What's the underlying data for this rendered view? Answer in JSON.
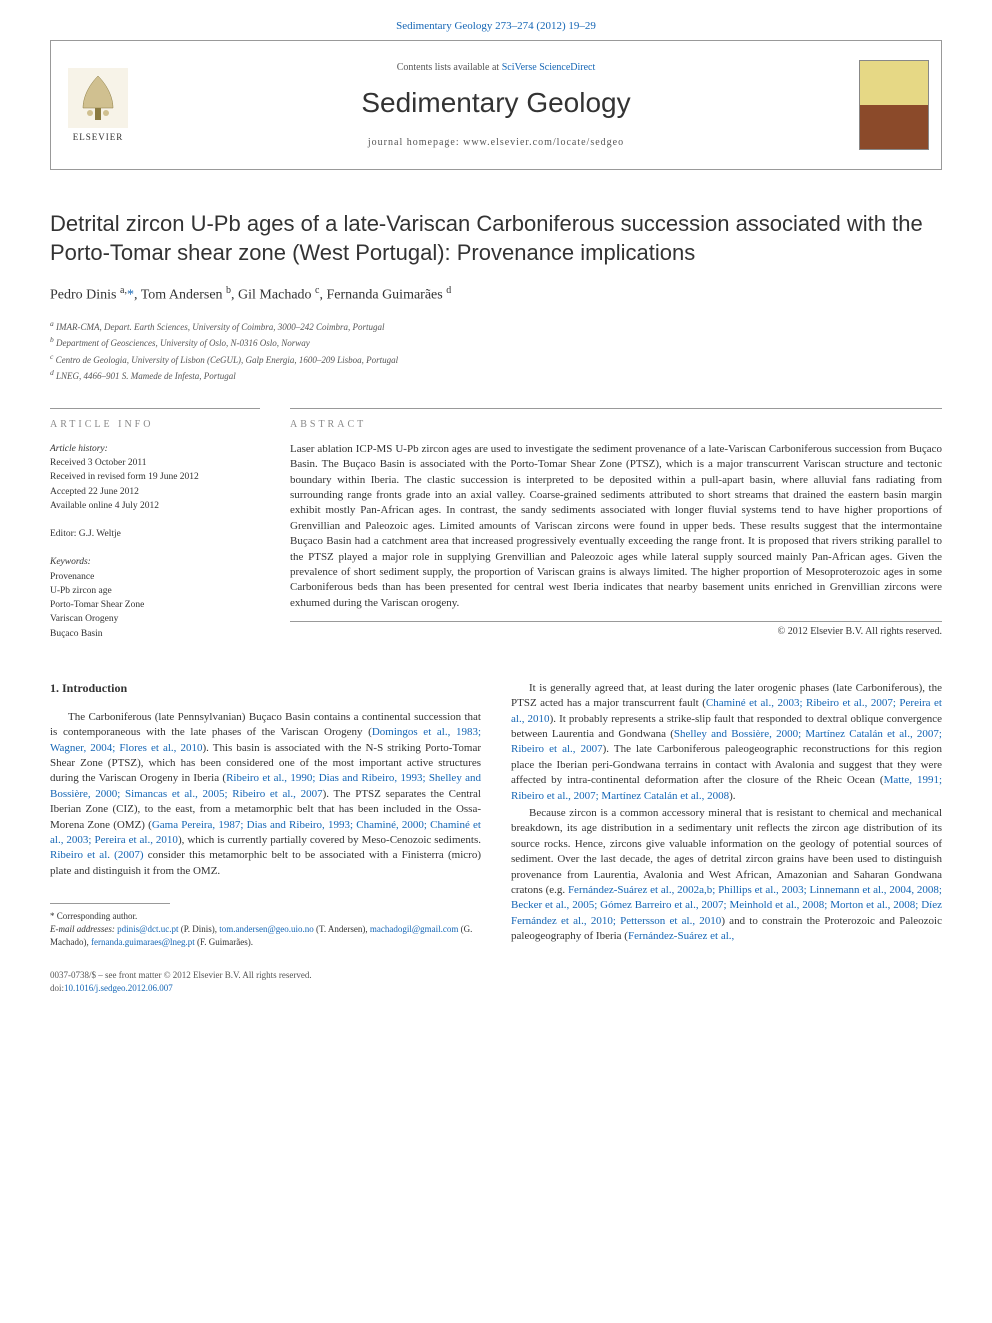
{
  "journal_ref_top": "Sedimentary Geology 273–274 (2012) 19–29",
  "header": {
    "contents_prefix": "Contents lists available at ",
    "contents_link": "SciVerse ScienceDirect",
    "journal_name": "Sedimentary Geology",
    "homepage_prefix": "journal homepage: ",
    "homepage_url": "www.elsevier.com/locate/sedgeo",
    "elsevier_label": "ELSEVIER"
  },
  "title": "Detrital zircon U-Pb ages of a late-Variscan Carboniferous succession associated with the Porto-Tomar shear zone (West Portugal): Provenance implications",
  "authors_html": "Pedro Dinis <sup>a,</sup><a href=\"#\">*</a>, Tom Andersen <sup>b</sup>, Gil Machado <sup>c</sup>, Fernanda Guimarães <sup>d</sup>",
  "affiliations": [
    "a IMAR-CMA, Depart. Earth Sciences, University of Coimbra, 3000–242 Coimbra, Portugal",
    "b Department of Geosciences, University of Oslo, N-0316 Oslo, Norway",
    "c Centro de Geologia, University of Lisbon (CeGUL), Galp Energia, 1600–209 Lisboa, Portugal",
    "d LNEG, 4466–901 S. Mamede de Infesta, Portugal"
  ],
  "article_info": {
    "label": "article info",
    "history_label": "Article history:",
    "history": [
      "Received 3 October 2011",
      "Received in revised form 19 June 2012",
      "Accepted 22 June 2012",
      "Available online 4 July 2012"
    ],
    "editor_line": "Editor: G.J. Weltje",
    "keywords_label": "Keywords:",
    "keywords": [
      "Provenance",
      "U-Pb zircon age",
      "Porto-Tomar Shear Zone",
      "Variscan Orogeny",
      "Buçaco Basin"
    ]
  },
  "abstract": {
    "label": "abstract",
    "text": "Laser ablation ICP-MS U-Pb zircon ages are used to investigate the sediment provenance of a late-Variscan Carboniferous succession from Buçaco Basin. The Buçaco Basin is associated with the Porto-Tomar Shear Zone (PTSZ), which is a major transcurrent Variscan structure and tectonic boundary within Iberia. The clastic succession is interpreted to be deposited within a pull-apart basin, where alluvial fans radiating from surrounding range fronts grade into an axial valley. Coarse-grained sediments attributed to short streams that drained the eastern basin margin exhibit mostly Pan-African ages. In contrast, the sandy sediments associated with longer fluvial systems tend to have higher proportions of Grenvillian and Paleozoic ages. Limited amounts of Variscan zircons were found in upper beds. These results suggest that the intermontaine Buçaco Basin had a catchment area that increased progressively eventually exceeding the range front. It is proposed that rivers striking parallel to the PTSZ played a major role in supplying Grenvillian and Paleozoic ages while lateral supply sourced mainly Pan-African ages. Given the prevalence of short sediment supply, the proportion of Variscan grains is always limited. The higher proportion of Mesoproterozoic ages in some Carboniferous beds than has been presented for central west Iberia indicates that nearby basement units enriched in Grenvillian zircons were exhumed during the Variscan orogeny.",
    "copyright": "© 2012 Elsevier B.V. All rights reserved."
  },
  "body": {
    "intro_heading": "1. Introduction",
    "left_paras": [
      "The Carboniferous (late Pennsylvanian) Buçaco Basin contains a continental succession that is contemporaneous with the late phases of the Variscan Orogeny (<a class=\"ref-link\" href=\"#\">Domingos et al., 1983; Wagner, 2004; Flores et al., 2010</a>). This basin is associated with the N-S striking Porto-Tomar Shear Zone (PTSZ), which has been considered one of the most important active structures during the Variscan Orogeny in Iberia (<a class=\"ref-link\" href=\"#\">Ribeiro et al., 1990; Dias and Ribeiro, 1993; Shelley and Bossière, 2000; Simancas et al., 2005; Ribeiro et al., 2007</a>). The PTSZ separates the Central Iberian Zone (CIZ), to the east, from a metamorphic belt that has been included in the Ossa-Morena Zone (OMZ) (<a class=\"ref-link\" href=\"#\">Gama Pereira, 1987; Dias and Ribeiro, 1993; Chaminé, 2000; Chaminé et al., 2003; Pereira et al., 2010</a>), which is currently partially covered by Meso-Cenozoic sediments. <a class=\"ref-link\" href=\"#\">Ribeiro et al. (2007)</a> consider this metamorphic belt to be associated with a Finisterra (micro) plate and distinguish it from the OMZ."
    ],
    "right_paras": [
      "It is generally agreed that, at least during the later orogenic phases (late Carboniferous), the PTSZ acted has a major transcurrent fault (<a class=\"ref-link\" href=\"#\">Chaminé et al., 2003; Ribeiro et al., 2007; Pereira et al., 2010</a>). It probably represents a strike-slip fault that responded to dextral oblique convergence between Laurentia and Gondwana (<a class=\"ref-link\" href=\"#\">Shelley and Bossière, 2000; Martínez Catalán et al., 2007; Ribeiro et al., 2007</a>). The late Carboniferous paleogeographic reconstructions for this region place the Iberian peri-Gondwana terrains in contact with Avalonia and suggest that they were affected by intra-continental deformation after the closure of the Rheic Ocean (<a class=\"ref-link\" href=\"#\">Matte, 1991; Ribeiro et al., 2007; Martínez Catalán et al., 2008</a>).",
      "Because zircon is a common accessory mineral that is resistant to chemical and mechanical breakdown, its age distribution in a sedimentary unit reflects the zircon age distribution of its source rocks. Hence, zircons give valuable information on the geology of potential sources of sediment. Over the last decade, the ages of detrital zircon grains have been used to distinguish provenance from Laurentia, Avalonia and West African, Amazonian and Saharan Gondwana cratons (e.g. <a class=\"ref-link\" href=\"#\">Fernández-Suárez et al., 2002a,b; Phillips et al., 2003; Linnemann et al., 2004, 2008; Becker et al., 2005; Gómez Barreiro et al., 2007; Meinhold et al., 2008; Morton et al., 2008; Díez Fernández et al., 2010; Pettersson et al., 2010</a>) and to constrain the Proterozoic and Paleozoic paleogeography of Iberia (<a class=\"ref-link\" href=\"#\">Fernández-Suárez et al.,</a>"
    ]
  },
  "footnote": {
    "corr_label": "* Corresponding author.",
    "email_label": "E-mail addresses: ",
    "emails": [
      {
        "addr": "pdinis@dct.uc.pt",
        "who": "(P. Dinis)"
      },
      {
        "addr": "tom.andersen@geo.uio.no",
        "who": "(T. Andersen)"
      },
      {
        "addr": "machadogil@gmail.com",
        "who": "(G. Machado)"
      },
      {
        "addr": "fernanda.guimaraes@lneg.pt",
        "who": "(F. Guimarães)."
      }
    ]
  },
  "bottom": {
    "issn_line": "0037-0738/$ – see front matter © 2012 Elsevier B.V. All rights reserved.",
    "doi_prefix": "doi:",
    "doi": "10.1016/j.sedgeo.2012.06.007"
  },
  "colors": {
    "link": "#1566b5",
    "text": "#333333",
    "meta": "#555555",
    "rule": "#999999"
  }
}
